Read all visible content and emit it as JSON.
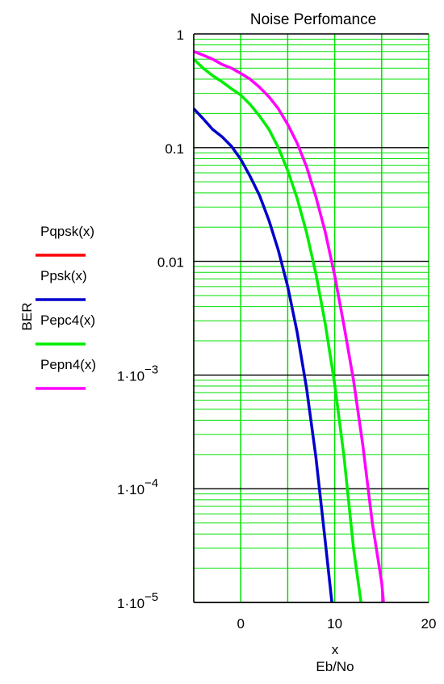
{
  "chart_data": {
    "type": "line",
    "title": "Noise Perfomance",
    "xlabel": "x",
    "xlabel2": "Eb/No",
    "ylabel": "BER",
    "xlim": [
      -5,
      20
    ],
    "ylim": [
      1e-05,
      1
    ],
    "yscale": "log",
    "grid": true,
    "legend_position": "left",
    "x_ticks": [
      {
        "value": 0,
        "label": "0"
      },
      {
        "value": 10,
        "label": "10"
      },
      {
        "value": 20,
        "label": "20"
      }
    ],
    "y_ticks": [
      {
        "value": 1,
        "label": "1"
      },
      {
        "value": 0.1,
        "label": "0.1"
      },
      {
        "value": 0.01,
        "label": "0.01"
      },
      {
        "value": 0.001,
        "mantissa": "1·10",
        "exponent": "−3"
      },
      {
        "value": 0.0001,
        "mantissa": "1·10",
        "exponent": "−4"
      },
      {
        "value": 1e-05,
        "mantissa": "1·10",
        "exponent": "−5"
      }
    ],
    "colors": {
      "grid_major": "#000000",
      "grid_minor": "#00e000"
    },
    "series": [
      {
        "name": "Pqpsk(x)",
        "color": "#ff0000",
        "points": []
      },
      {
        "name": "Ppsk(x)",
        "color": "#0000cc",
        "points": [
          [
            -5,
            0.22
          ],
          [
            -4,
            0.18
          ],
          [
            -3,
            0.145
          ],
          [
            -2,
            0.125
          ],
          [
            -1,
            0.103
          ],
          [
            0,
            0.079
          ],
          [
            1,
            0.056
          ],
          [
            2,
            0.038
          ],
          [
            3,
            0.023
          ],
          [
            4,
            0.0125
          ],
          [
            5,
            0.006
          ],
          [
            6,
            0.0024
          ],
          [
            7,
            0.00077
          ],
          [
            8,
            0.00019
          ],
          [
            9,
            3.4e-05
          ],
          [
            9.7,
            1e-05
          ]
        ]
      },
      {
        "name": "Pepc4(x)",
        "color": "#00ee00",
        "points": [
          [
            -5,
            0.6
          ],
          [
            -4,
            0.5
          ],
          [
            -3,
            0.43
          ],
          [
            -2,
            0.38
          ],
          [
            -1,
            0.33
          ],
          [
            0,
            0.29
          ],
          [
            1,
            0.24
          ],
          [
            2,
            0.19
          ],
          [
            3,
            0.145
          ],
          [
            4,
            0.1
          ],
          [
            5,
            0.063
          ],
          [
            6,
            0.036
          ],
          [
            7,
            0.018
          ],
          [
            8,
            0.0078
          ],
          [
            9,
            0.0028
          ],
          [
            10,
            0.00083
          ],
          [
            11,
            0.00019
          ],
          [
            12,
            3e-05
          ],
          [
            12.8,
            1e-05
          ]
        ]
      },
      {
        "name": "Pepn4(x)",
        "color": "#ff00ff",
        "points": [
          [
            -5,
            0.7
          ],
          [
            -4,
            0.65
          ],
          [
            -3,
            0.6
          ],
          [
            -2,
            0.54
          ],
          [
            -1,
            0.5
          ],
          [
            0,
            0.45
          ],
          [
            1,
            0.4
          ],
          [
            2,
            0.34
          ],
          [
            3,
            0.28
          ],
          [
            4,
            0.22
          ],
          [
            5,
            0.16
          ],
          [
            6,
            0.11
          ],
          [
            7,
            0.068
          ],
          [
            8,
            0.037
          ],
          [
            9,
            0.018
          ],
          [
            10,
            0.0075
          ],
          [
            11,
            0.0027
          ],
          [
            12,
            0.0009
          ],
          [
            13,
            0.00024
          ],
          [
            14,
            5e-05
          ],
          [
            15,
            1.5e-05
          ],
          [
            15.2,
            1e-05
          ]
        ]
      }
    ]
  }
}
